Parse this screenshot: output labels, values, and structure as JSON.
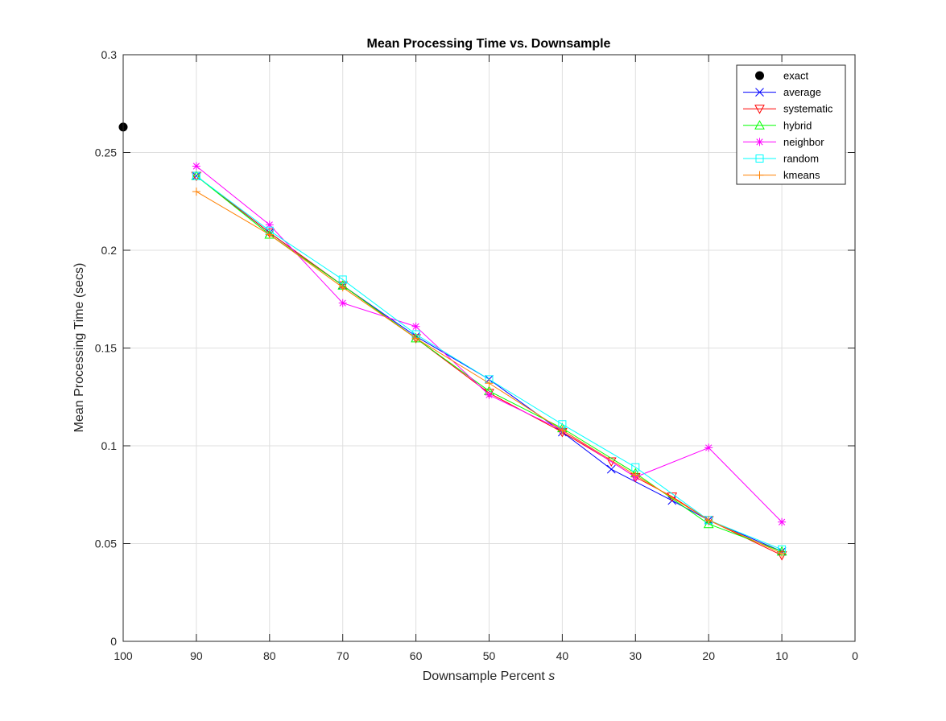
{
  "chart_data": {
    "type": "line",
    "title": "Mean Processing Time vs. Downsample",
    "xlabel": "Downsample Percent",
    "xlabel_var": "s",
    "ylabel": "Mean Processing Time (secs)",
    "xlim": [
      100,
      0
    ],
    "ylim": [
      0,
      0.3
    ],
    "x_reversed": true,
    "grid": true,
    "legend_position": "top-right",
    "xticks": [
      100,
      90,
      80,
      70,
      60,
      50,
      40,
      30,
      20,
      10,
      0
    ],
    "xtick_labels": [
      "100",
      "90",
      "80",
      "70",
      "60",
      "50",
      "40",
      "30",
      "20",
      "10",
      "0"
    ],
    "yticks": [
      0,
      0.05,
      0.1,
      0.15,
      0.2,
      0.25,
      0.3
    ],
    "ytick_labels": [
      "0",
      "0.05",
      "0.1",
      "0.15",
      "0.2",
      "0.25",
      "0.3"
    ],
    "series": [
      {
        "name": "exact",
        "color": "#000000",
        "marker": "dot",
        "line": false,
        "x": [
          100
        ],
        "y": [
          0.263
        ]
      },
      {
        "name": "average",
        "color": "#0000ff",
        "marker": "x",
        "line": true,
        "x": [
          90,
          80,
          70,
          60,
          50,
          40,
          33.3,
          25,
          20,
          10
        ],
        "y": [
          0.238,
          0.209,
          0.182,
          0.156,
          0.134,
          0.107,
          0.088,
          0.072,
          0.062,
          0.046
        ]
      },
      {
        "name": "systematic",
        "color": "#ff0000",
        "marker": "triangle-down",
        "line": true,
        "x": [
          90,
          80,
          70,
          60,
          50,
          40,
          33.3,
          30,
          25,
          20,
          10
        ],
        "y": [
          0.238,
          0.209,
          0.182,
          0.155,
          0.127,
          0.107,
          0.092,
          0.084,
          0.074,
          0.062,
          0.044
        ]
      },
      {
        "name": "hybrid",
        "color": "#00ff00",
        "marker": "triangle-up",
        "line": true,
        "x": [
          90,
          80,
          70,
          60,
          50,
          40,
          30,
          20,
          10
        ],
        "y": [
          0.238,
          0.208,
          0.182,
          0.155,
          0.128,
          0.109,
          0.086,
          0.06,
          0.046
        ]
      },
      {
        "name": "neighbor",
        "color": "#ff00ff",
        "marker": "asterisk",
        "line": true,
        "x": [
          90,
          80,
          70,
          60,
          50,
          40,
          30,
          20,
          10
        ],
        "y": [
          0.243,
          0.213,
          0.173,
          0.161,
          0.126,
          0.108,
          0.084,
          0.099,
          0.061
        ]
      },
      {
        "name": "random",
        "color": "#00ffff",
        "marker": "square",
        "line": true,
        "x": [
          90,
          80,
          70,
          60,
          50,
          40,
          30,
          20,
          10
        ],
        "y": [
          0.238,
          0.21,
          0.185,
          0.157,
          0.134,
          0.111,
          0.089,
          0.062,
          0.047
        ]
      },
      {
        "name": "kmeans",
        "color": "#ff8000",
        "marker": "plus",
        "line": true,
        "x": [
          90,
          80,
          70,
          60,
          50,
          40,
          30,
          20,
          10
        ],
        "y": [
          0.23,
          0.208,
          0.181,
          0.155,
          0.132,
          0.108,
          0.085,
          0.062,
          0.045
        ]
      }
    ]
  }
}
